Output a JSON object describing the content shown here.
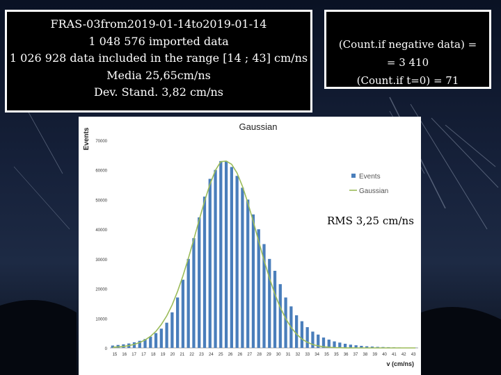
{
  "stats_box": {
    "line1": "FRAS-03from2019-01-14to2019-01-14",
    "line2": "1 048 576 imported data",
    "line3": "1 026 928 data included in the range  [14 ; 43] cm/ns",
    "line4": "Media 25,65cm/ns",
    "line5": "Dev. Stand. 3,82 cm/ns"
  },
  "count_box": {
    "line1": "(Count.if negative data) =",
    "line2": "= 3 410",
    "line3": "(Count.if t=0) = 71"
  },
  "rms_note": "RMS  3,25 cm/ns",
  "colors": {
    "bar": "#4a7ebb",
    "curve": "#9bbb59",
    "background": "#0b1426",
    "box_border": "#ffffff"
  },
  "chart_data": {
    "type": "bar",
    "title": "Gaussian",
    "xlabel": "v (cm/ns)",
    "ylabel": "Events",
    "ylim": [
      0,
      70000
    ],
    "yticks": [
      0,
      10000,
      20000,
      30000,
      40000,
      50000,
      60000,
      70000
    ],
    "x_tick_labels": [
      "15",
      "16",
      "17",
      "17",
      "18",
      "19",
      "20",
      "21",
      "22",
      "23",
      "24",
      "25",
      "26",
      "26",
      "27",
      "28",
      "29",
      "30",
      "31",
      "32",
      "33",
      "34",
      "35",
      "35",
      "36",
      "37",
      "38",
      "39",
      "40",
      "41",
      "42",
      "43"
    ],
    "x": [
      15,
      15.5,
      16,
      16.5,
      17,
      17.5,
      18,
      18.5,
      19,
      19.5,
      20,
      20.5,
      21,
      21.5,
      22,
      22.5,
      23,
      23.5,
      24,
      24.5,
      25,
      25.5,
      26,
      26.5,
      27,
      27.5,
      28,
      28.5,
      29,
      29.5,
      30,
      30.5,
      31,
      31.5,
      32,
      32.5,
      33,
      33.5,
      34,
      34.5,
      35,
      35.5,
      36,
      36.5,
      37,
      37.5,
      38,
      38.5,
      39,
      39.5,
      40,
      40.5,
      41,
      41.5,
      42,
      42.5,
      43
    ],
    "series": [
      {
        "name": "Events",
        "values": [
          800,
          1000,
          1200,
          1500,
          1900,
          2400,
          3000,
          3800,
          5000,
          6500,
          8500,
          12000,
          17000,
          23000,
          30000,
          37000,
          44000,
          51000,
          57000,
          60000,
          63000,
          63000,
          61000,
          58000,
          54000,
          50000,
          45000,
          40000,
          35000,
          30000,
          26000,
          21500,
          17000,
          14000,
          11000,
          9000,
          7000,
          5500,
          4500,
          3500,
          2800,
          2200,
          1800,
          1400,
          1100,
          900,
          700,
          550,
          450,
          350,
          300,
          250,
          200,
          150,
          120,
          100,
          80
        ]
      },
      {
        "name": "Gaussian",
        "type": "line",
        "values": [
          200,
          320,
          500,
          780,
          1200,
          1800,
          2700,
          3900,
          5600,
          7900,
          10800,
          14500,
          19000,
          24300,
          30200,
          36600,
          43100,
          49500,
          55200,
          59900,
          62800,
          63000,
          61900,
          59000,
          54500,
          48900,
          42600,
          36000,
          29500,
          23500,
          18200,
          13600,
          9900,
          6900,
          4700,
          3000,
          1900,
          1150,
          670,
          380,
          210,
          110,
          60,
          30,
          15,
          7,
          3,
          1,
          0,
          0,
          0,
          0,
          0,
          0,
          0,
          0,
          0
        ]
      }
    ],
    "legend_position": "right"
  }
}
